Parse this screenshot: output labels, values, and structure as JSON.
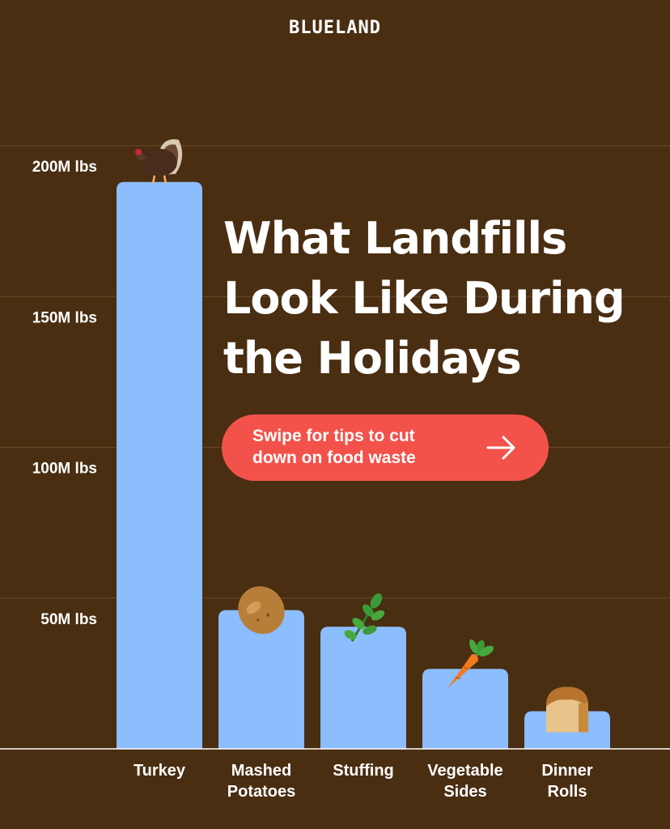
{
  "brand": "BLUELAND",
  "headline_lines": [
    "What Landfills",
    "Look Like During",
    "the Holidays"
  ],
  "cta": {
    "lines": [
      "Swipe for tips to cut",
      "down on food waste"
    ],
    "icon": "arrow-right-icon"
  },
  "colors": {
    "background": "#4a2e12",
    "bar": "#8cbdfc",
    "cta": "#f2524a",
    "grid": "#6a4a2c",
    "text": "#ffffff"
  },
  "chart_data": {
    "type": "bar",
    "title": "",
    "xlabel": "",
    "ylabel": "",
    "ylim": [
      0,
      200
    ],
    "y_ticks": [
      {
        "value": 200,
        "label": "200M lbs"
      },
      {
        "value": 150,
        "label": "150M lbs"
      },
      {
        "value": 100,
        "label": "100M lbs"
      },
      {
        "value": 50,
        "label": "50M lbs"
      }
    ],
    "grid": true,
    "categories": [
      {
        "lines": [
          "Turkey"
        ],
        "icon": "turkey-icon"
      },
      {
        "lines": [
          "Mashed",
          "Potatoes"
        ],
        "icon": "potato-icon"
      },
      {
        "lines": [
          "Stuffing"
        ],
        "icon": "herb-icon"
      },
      {
        "lines": [
          "Vegetable",
          "Sides"
        ],
        "icon": "carrot-icon"
      },
      {
        "lines": [
          "Dinner",
          "Rolls"
        ],
        "icon": "bread-icon"
      }
    ],
    "values": [
      188,
      46,
      40.5,
      26.5,
      12.5
    ]
  }
}
